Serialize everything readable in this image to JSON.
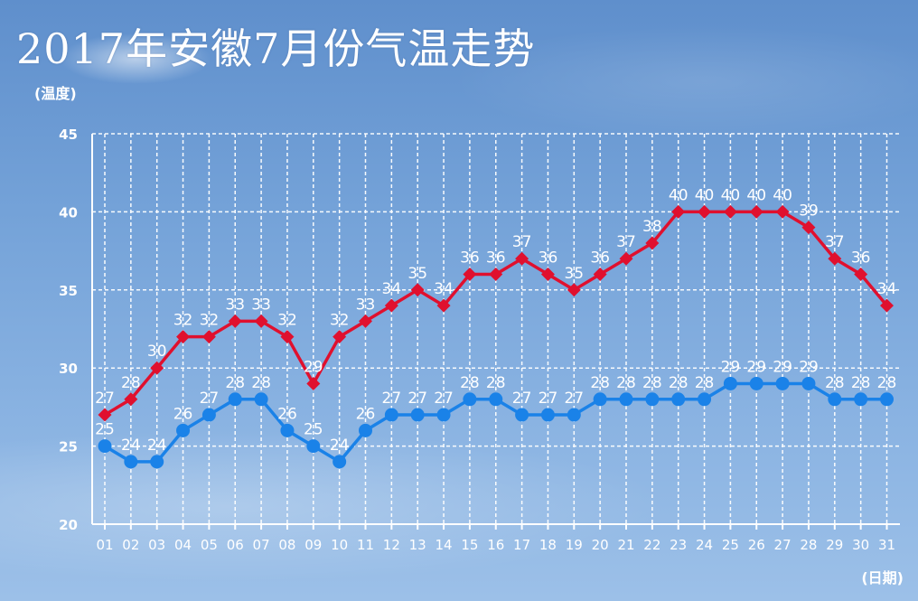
{
  "title": "2017年安徽7月份气温走势",
  "chart_data": {
    "type": "line",
    "title": "2017年安徽7月份气温走势",
    "xlabel": "(日期)",
    "ylabel": "(温度)",
    "categories": [
      "01",
      "02",
      "03",
      "04",
      "05",
      "06",
      "07",
      "08",
      "09",
      "10",
      "11",
      "12",
      "13",
      "14",
      "15",
      "16",
      "17",
      "18",
      "19",
      "20",
      "21",
      "22",
      "23",
      "24",
      "25",
      "26",
      "27",
      "28",
      "29",
      "30",
      "31"
    ],
    "ylim": [
      20,
      45
    ],
    "yticks": [
      20,
      25,
      30,
      35,
      40,
      45
    ],
    "grid": true,
    "series": [
      {
        "key": "high",
        "color": "#e0102e",
        "marker": "diamond",
        "values": [
          27,
          28,
          30,
          32,
          32,
          33,
          33,
          32,
          29,
          32,
          33,
          34,
          35,
          34,
          36,
          36,
          37,
          36,
          35,
          36,
          37,
          38,
          40,
          40,
          40,
          40,
          40,
          39,
          37,
          36,
          34
        ]
      },
      {
        "key": "low",
        "color": "#1a82e8",
        "marker": "circle",
        "values": [
          25,
          24,
          24,
          26,
          27,
          28,
          28,
          26,
          25,
          24,
          26,
          27,
          27,
          27,
          28,
          28,
          27,
          27,
          27,
          28,
          28,
          28,
          28,
          28,
          29,
          29,
          29,
          29,
          28,
          28,
          28
        ]
      }
    ]
  }
}
